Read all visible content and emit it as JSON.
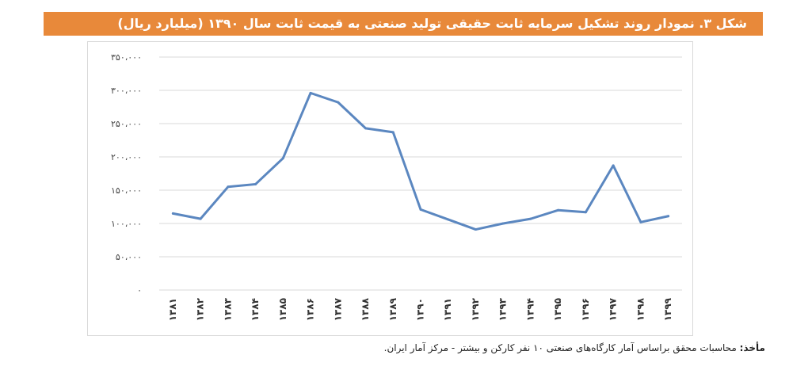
{
  "chart_data": {
    "type": "line",
    "title": "شکل ۳. نمودار روند تشکیل سرمایه ثابت حقیقی تولید صنعتی به قیمت ثابت سال ۱۳۹۰ (میلیارد ریال)",
    "categories": [
      "۱۳۸۱",
      "۱۳۸۲",
      "۱۳۸۳",
      "۱۳۸۴",
      "۱۳۸۵",
      "۱۳۸۶",
      "۱۳۸۷",
      "۱۳۸۸",
      "۱۳۸۹",
      "۱۳۹۰",
      "۱۳۹۱",
      "۱۳۹۲",
      "۱۳۹۳",
      "۱۳۹۴",
      "۱۳۹۵",
      "۱۳۹۶",
      "۱۳۹۷",
      "۱۳۹۸",
      "۱۳۹۹"
    ],
    "values": [
      115000,
      107000,
      155000,
      159000,
      198000,
      296000,
      282000,
      243000,
      237000,
      121000,
      106000,
      91000,
      100000,
      107000,
      120000,
      117000,
      187000,
      102000,
      111000
    ],
    "yticks": [
      0,
      50000,
      100000,
      150000,
      200000,
      250000,
      300000,
      350000
    ],
    "ytick_labels": [
      "۰",
      "۵۰،۰۰۰",
      "۱۰۰،۰۰۰",
      "۱۵۰،۰۰۰",
      "۲۰۰،۰۰۰",
      "۲۵۰،۰۰۰",
      "۳۰۰،۰۰۰",
      "۳۵۰،۰۰۰"
    ],
    "ylim": [
      0,
      350000
    ],
    "grid": true,
    "line_color": "#5b87c0",
    "title_bg": "#e8893a"
  },
  "source": {
    "label": "مأخذ:",
    "text": " محاسبات محقق براساس آمار کارگاه‌های صنعتی ۱۰ نفر کارکن و بیشتر - مرکز آمار ایران."
  }
}
